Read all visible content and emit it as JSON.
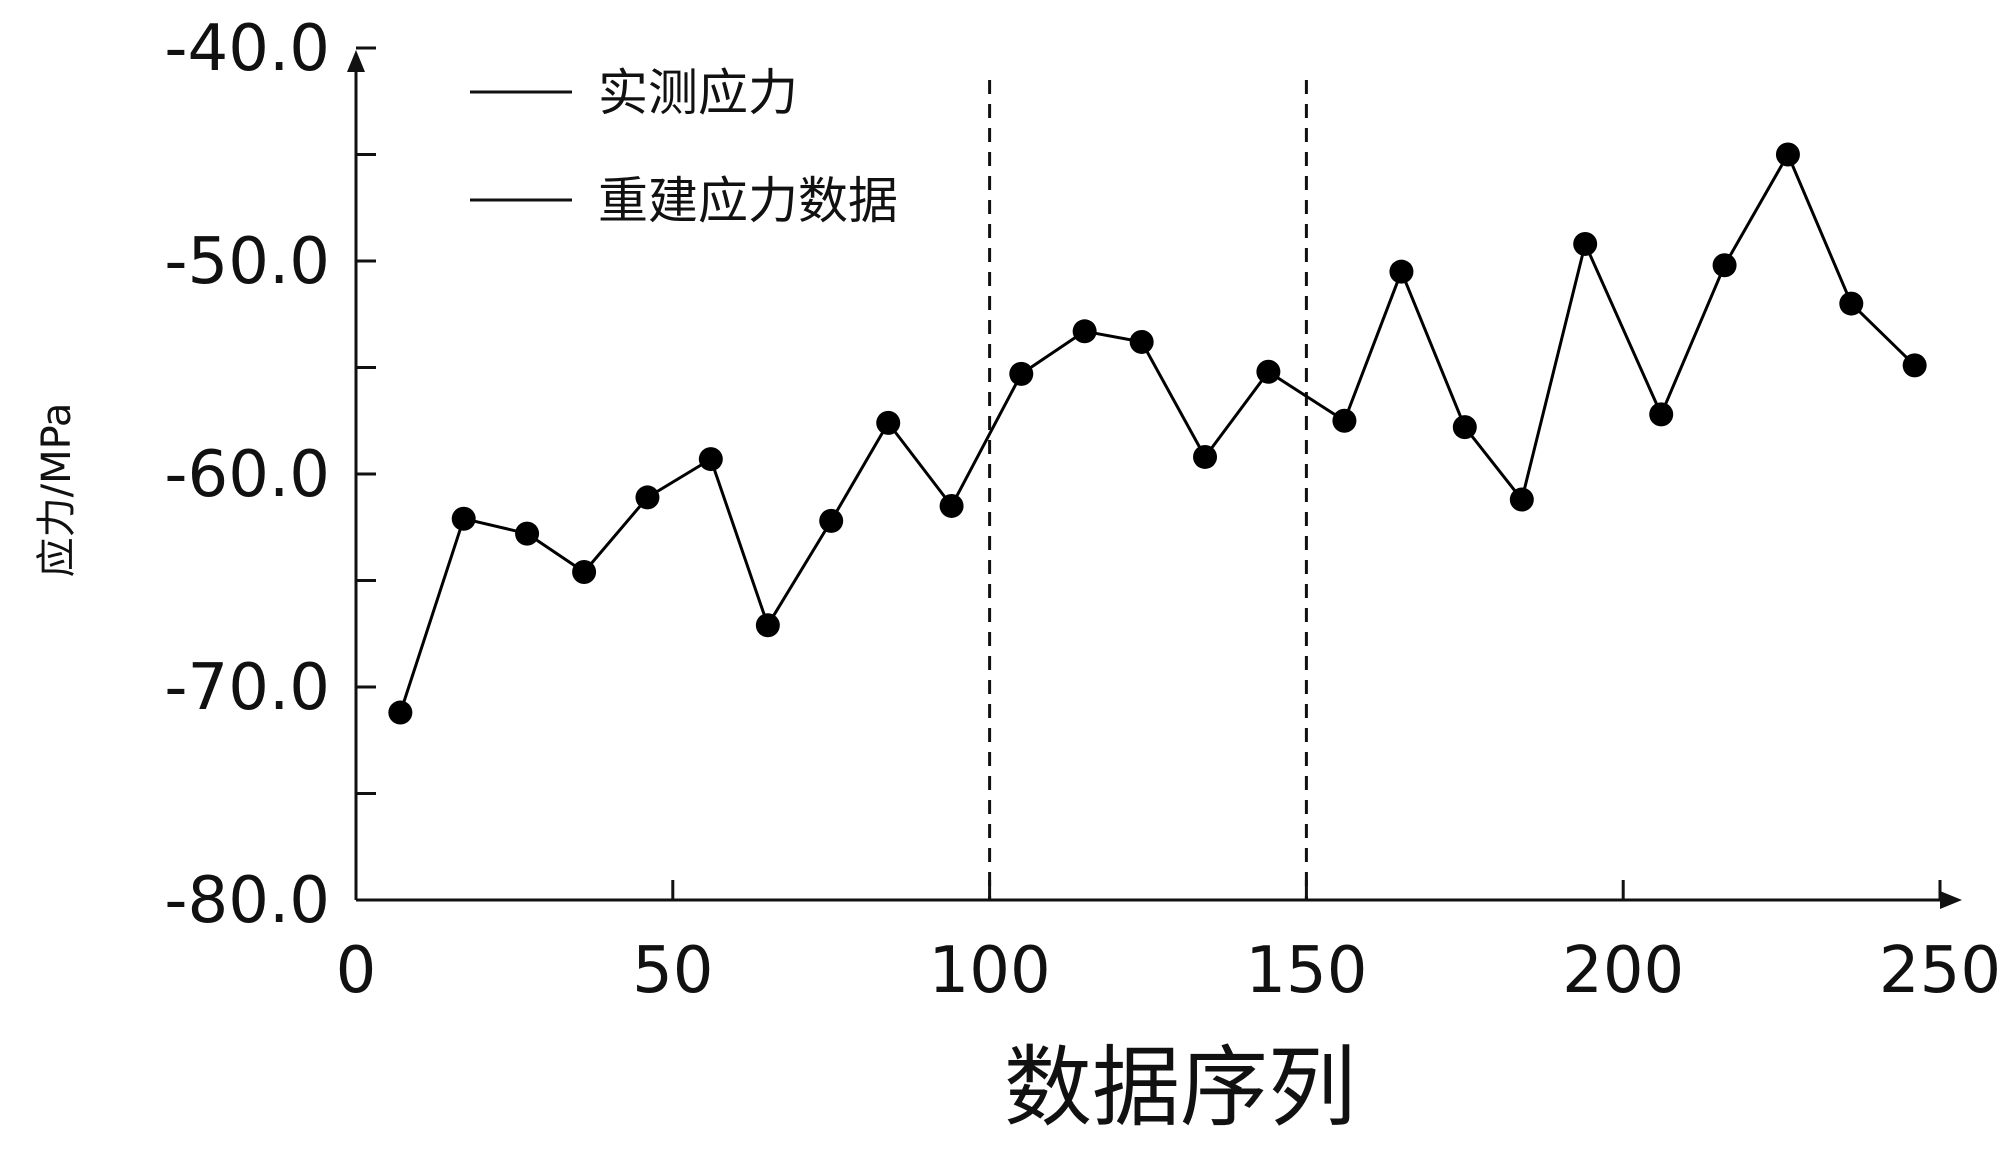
{
  "chart_data": {
    "type": "line",
    "title": "",
    "xlabel": "数据序列",
    "ylabel": "应力/MPa",
    "xlim": [
      0,
      250
    ],
    "ylim": [
      -80,
      -40
    ],
    "x_ticks": [
      0,
      50,
      100,
      150,
      200,
      250
    ],
    "x_tick_labels": [
      "0",
      "50",
      "100",
      "150",
      "200",
      "250"
    ],
    "y_ticks": [
      -40,
      -50,
      -60,
      -70,
      -80
    ],
    "y_tick_labels": [
      "-40.0",
      "-50.0",
      "-60.0",
      "-70.0",
      "-80.0"
    ],
    "y_minor_ticks": [
      -45,
      -55,
      -65,
      -75
    ],
    "grid": false,
    "legend_position": "top-left",
    "legend": [
      "实测应力",
      "重建应力数据"
    ],
    "reference_lines_x": [
      100,
      150
    ],
    "series": [
      {
        "name": "重建应力数据",
        "color": "#000000",
        "marker": "circle",
        "x": [
          7,
          17,
          27,
          36,
          46,
          56,
          65,
          75,
          84,
          94,
          105,
          115,
          124,
          134,
          144,
          156,
          165,
          175,
          184,
          194,
          206,
          216,
          226,
          236,
          246
        ],
        "y": [
          -71.2,
          -62.1,
          -62.8,
          -64.6,
          -61.1,
          -59.3,
          -67.1,
          -62.2,
          -57.6,
          -61.5,
          -55.3,
          -53.3,
          -53.8,
          -59.2,
          -55.2,
          -57.5,
          -50.5,
          -57.8,
          -61.2,
          -49.2,
          -57.2,
          -50.2,
          -45.0,
          -52.0,
          -54.9
        ]
      }
    ]
  }
}
